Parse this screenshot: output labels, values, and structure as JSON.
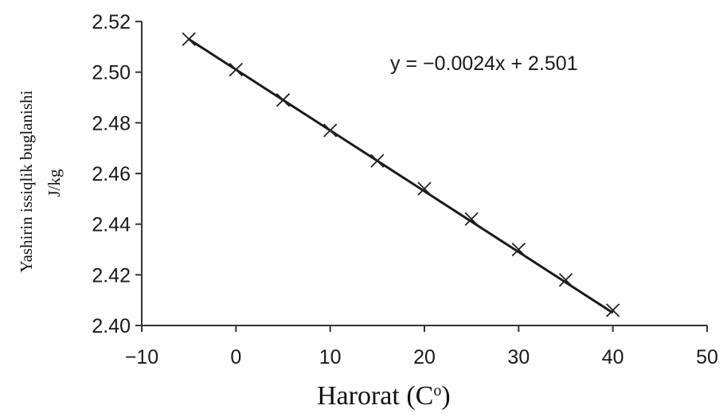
{
  "chart_data": {
    "type": "scatter",
    "xlabel": "Harorat (C",
    "xlabel_sup": "o",
    "xlabel_close": ")",
    "ylabel_line1": "Yashirin issiqlik buglanishi",
    "ylabel_line2": "J/kg",
    "equation": "y = −0.0024x + 2.501",
    "xlim": [
      -10,
      50
    ],
    "ylim": [
      2.4,
      2.52
    ],
    "xticks": [
      -10,
      0,
      10,
      20,
      30,
      40,
      50
    ],
    "xtick_labels": [
      "−10",
      "0",
      "10",
      "20",
      "30",
      "40",
      "50"
    ],
    "yticks": [
      2.4,
      2.42,
      2.44,
      2.46,
      2.48,
      2.5,
      2.52
    ],
    "ytick_labels": [
      "2.40",
      "2.42",
      "2.44",
      "2.46",
      "2.48",
      "2.50",
      "2.52"
    ],
    "grid": false,
    "marker": "x",
    "series": [
      {
        "x": [
          -5,
          0,
          5,
          10,
          15,
          20,
          25,
          30,
          35,
          40
        ],
        "y": [
          2.513,
          2.501,
          2.489,
          2.477,
          2.465,
          2.454,
          2.442,
          2.43,
          2.418,
          2.406
        ]
      }
    ],
    "trendline": {
      "slope": -0.0024,
      "intercept": 2.501,
      "x_range": [
        -5,
        40
      ]
    }
  }
}
